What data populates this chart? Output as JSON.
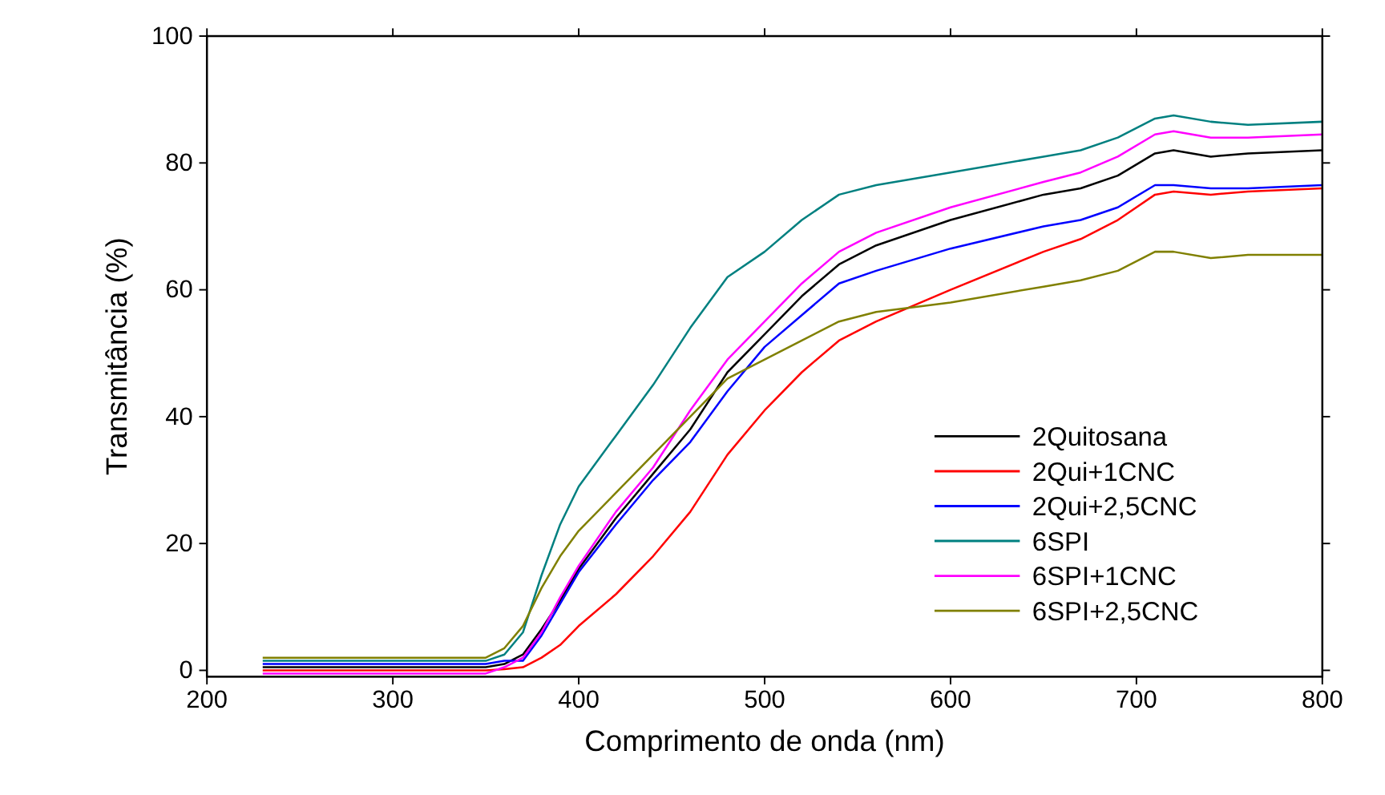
{
  "chart_data": {
    "type": "line",
    "xlabel": "Comprimento de onda (nm)",
    "ylabel": "Transmitância (%)",
    "x": [
      230,
      300,
      350,
      360,
      370,
      380,
      390,
      400,
      420,
      440,
      460,
      480,
      500,
      520,
      540,
      560,
      600,
      650,
      670,
      690,
      710,
      720,
      740,
      760,
      800
    ],
    "xlim": [
      200,
      800
    ],
    "xticks": [
      200,
      300,
      400,
      500,
      600,
      700,
      800
    ],
    "ylim": [
      -1,
      100
    ],
    "yticks": [
      0,
      20,
      40,
      60,
      80,
      100
    ],
    "legend": "bottom right",
    "grid": false,
    "line_style": "solid",
    "series": [
      {
        "name": "2Quitosana",
        "color": "#000000",
        "values": [
          0.5,
          0.5,
          0.5,
          1,
          2.5,
          6.5,
          11,
          16,
          24,
          31,
          38,
          47,
          53,
          59,
          64,
          67,
          71,
          75,
          76,
          78,
          81.5,
          82,
          81,
          81.5,
          82
        ]
      },
      {
        "name": "2Qui+1CNC",
        "color": "#ff0000",
        "values": [
          0,
          0,
          0,
          0.2,
          0.5,
          2,
          4,
          7,
          12,
          18,
          25,
          34,
          41,
          47,
          52,
          55,
          60,
          66,
          68,
          71,
          75,
          75.5,
          75,
          75.5,
          76
        ]
      },
      {
        "name": "2Qui+2,5CNC",
        "color": "#0000ff",
        "values": [
          1,
          1,
          1,
          1.5,
          1.5,
          5.5,
          10.5,
          15.5,
          23,
          30,
          36,
          44,
          51,
          56,
          61,
          63,
          66.5,
          70,
          71,
          73,
          76.5,
          76.5,
          76,
          76,
          76.5
        ]
      },
      {
        "name": "6SPI",
        "color": "#008080",
        "values": [
          1.5,
          1.5,
          1.5,
          2.5,
          6,
          15,
          23,
          29,
          37,
          45,
          54,
          62,
          66,
          71,
          75,
          76.5,
          78.5,
          81,
          82,
          84,
          87,
          87.5,
          86.5,
          86,
          86.5
        ]
      },
      {
        "name": "6SPI+1CNC",
        "color": "#ff00ff",
        "values": [
          -0.5,
          -0.5,
          -0.5,
          0.5,
          2,
          6,
          11.5,
          16.5,
          25,
          32,
          41,
          49,
          55,
          61,
          66,
          69,
          73,
          77,
          78.5,
          81,
          84.5,
          85,
          84,
          84,
          84.5
        ]
      },
      {
        "name": "6SPI+2,5CNC",
        "color": "#808000",
        "values": [
          2,
          2,
          2,
          3.5,
          7,
          13,
          18,
          22,
          28,
          34,
          40,
          46,
          49,
          52,
          55,
          56.5,
          58,
          60.5,
          61.5,
          63,
          66,
          66,
          65,
          65.5,
          65.5
        ]
      }
    ]
  }
}
